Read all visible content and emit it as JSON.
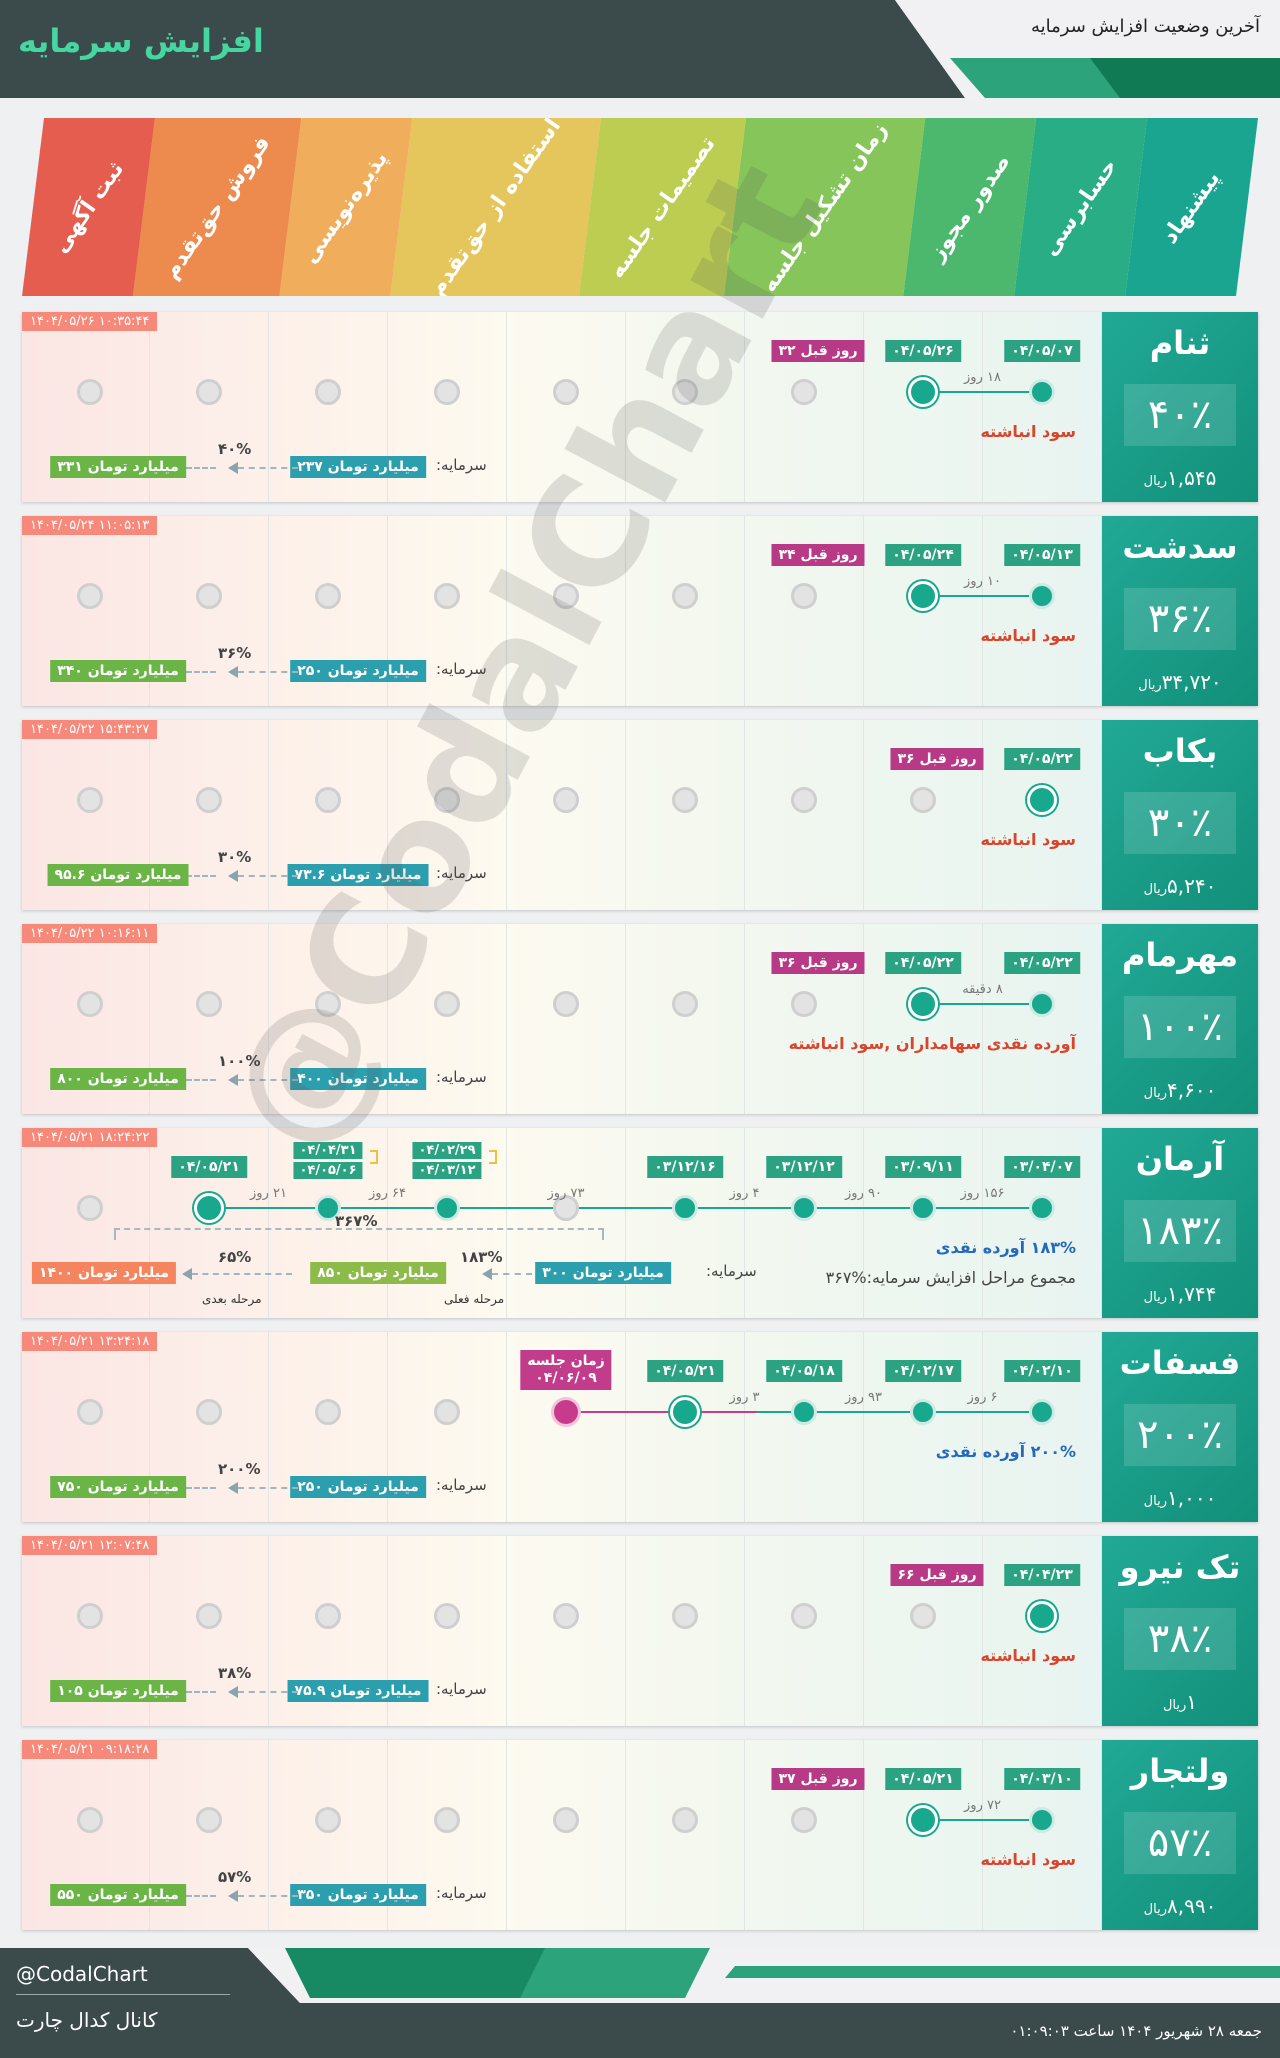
{
  "header": {
    "title": "افزایش سرمایه",
    "subtitle": "آخرین وضعیت افزایش سرمایه"
  },
  "stages": [
    {
      "label": "پیشنهاد",
      "color": "#1aa590"
    },
    {
      "label": "حسابرسی",
      "color": "#28ad84"
    },
    {
      "label": "صدور مجوز",
      "color": "#4bb86d"
    },
    {
      "label": "زمان تشکیل جلسه",
      "color": "#85c55a"
    },
    {
      "label": "تصمیمات جلسه",
      "color": "#bccd52"
    },
    {
      "label": "استفاده از حق‌تقدم",
      "color": "#e5c65c"
    },
    {
      "label": "پذیره‌نویسی",
      "color": "#f0ad5b"
    },
    {
      "label": "فروش حق‌تقدم",
      "color": "#ed8a4e"
    },
    {
      "label": "ثبت آگهی",
      "color": "#e45d4f"
    }
  ],
  "cards": [
    {
      "symbol": "ثنام",
      "percent": "۴۰٪",
      "price": "۱,۵۴۵",
      "unit": "ریال",
      "timestamp": "۱۴۰۴/۰۵/۲۶ ۱۰:۳۵:۴۴",
      "reason": "سود انباشته",
      "reason_color": "red",
      "cap_label": "سرمایه:",
      "capital": "۲۳۷ میلیارد تومان",
      "increase_pct": "۴۰%",
      "new_capital": "۳۳۱ میلیارد تومان",
      "nodes": [
        {
          "idx": 0,
          "state": "done",
          "date": "۰۴/۰۵/۰۷"
        },
        {
          "idx": 1,
          "state": "cur",
          "date": "۰۴/۰۵/۲۶"
        }
      ],
      "durations": [
        {
          "from": 0,
          "to": 1,
          "text": "۱۸ روز"
        }
      ],
      "days_ago": {
        "idx": 2,
        "text": "۳۲ روز قبل"
      }
    },
    {
      "symbol": "سدشت",
      "percent": "۳۶٪",
      "price": "۳۴,۷۲۰",
      "unit": "ریال",
      "timestamp": "۱۴۰۴/۰۵/۲۴ ۱۱:۰۵:۱۳",
      "reason": "سود انباشته",
      "reason_color": "red",
      "cap_label": "سرمایه:",
      "capital": "۲۵۰ میلیارد تومان",
      "increase_pct": "۳۶%",
      "new_capital": "۳۴۰ میلیارد تومان",
      "nodes": [
        {
          "idx": 0,
          "state": "done",
          "date": "۰۴/۰۵/۱۳"
        },
        {
          "idx": 1,
          "state": "cur",
          "date": "۰۴/۰۵/۲۴"
        }
      ],
      "durations": [
        {
          "from": 0,
          "to": 1,
          "text": "۱۰ روز"
        }
      ],
      "days_ago": {
        "idx": 2,
        "text": "۳۴ روز قبل"
      }
    },
    {
      "symbol": "بکاب",
      "percent": "۳۰٪",
      "price": "۵,۲۴۰",
      "unit": "ریال",
      "timestamp": "۱۴۰۴/۰۵/۲۲ ۱۵:۴۳:۲۷",
      "reason": "سود انباشته",
      "reason_color": "red",
      "cap_label": "سرمایه:",
      "capital": "۷۳.۶ میلیارد تومان",
      "increase_pct": "۳۰%",
      "new_capital": "۹۵.۶ میلیارد تومان",
      "nodes": [
        {
          "idx": 0,
          "state": "cur",
          "date": "۰۴/۰۵/۲۲"
        }
      ],
      "durations": [],
      "days_ago": {
        "idx": 1,
        "text": "۳۶ روز قبل"
      }
    },
    {
      "symbol": "مهرمام",
      "percent": "۱۰۰٪",
      "price": "۴,۶۰۰",
      "unit": "ریال",
      "timestamp": "۱۴۰۴/۰۵/۲۲ ۱۰:۱۶:۱۱",
      "reason": "آورده نقدی سهامداران ,سود انباشته",
      "reason_color": "red",
      "cap_label": "سرمایه:",
      "capital": "۴۰۰ میلیارد تومان",
      "increase_pct": "۱۰۰%",
      "new_capital": "۸۰۰ میلیارد تومان",
      "nodes": [
        {
          "idx": 0,
          "state": "done",
          "date": "۰۴/۰۵/۲۲"
        },
        {
          "idx": 1,
          "state": "cur",
          "date": "۰۴/۰۵/۲۲"
        }
      ],
      "durations": [
        {
          "from": 0,
          "to": 1,
          "text": "۸ دقیقه"
        }
      ],
      "days_ago": {
        "idx": 2,
        "text": "۳۶ روز قبل"
      }
    },
    {
      "symbol": "آرمان",
      "percent": "۱۸۳٪",
      "price": "۱,۷۴۴",
      "unit": "ریال",
      "timestamp": "۱۴۰۴/۰۵/۲۱ ۱۸:۲۴:۲۲",
      "reason": "۱۸۳% آورده نقدی",
      "reason_color": "blue",
      "reason2": "مجموع مراحل افزایش سرمایه:%۳۶۷",
      "cap_label": "سرمایه:",
      "capital": "۳۰۰ میلیارد تومان",
      "increase_pct": "۶۵%",
      "new_capital": "۱۴۰۰ میلیارد تومان",
      "mid_capital": "۸۵۰ میلیارد تومان",
      "mid_pct": "۱۸۳%",
      "total_pct": "۳۶۷%",
      "current_stage_label": "مرحله فعلی",
      "next_stage_label": "مرحله بعدی",
      "nodes": [
        {
          "idx": 0,
          "state": "done",
          "date": "۰۳/۰۴/۰۷"
        },
        {
          "idx": 1,
          "state": "done",
          "date": "۰۳/۰۹/۱۱"
        },
        {
          "idx": 2,
          "state": "done",
          "date": "۰۳/۱۲/۱۲"
        },
        {
          "idx": 3,
          "state": "done",
          "date": "۰۳/۱۲/۱۶"
        },
        {
          "idx": 5,
          "state": "done",
          "date": "۰۴/۰۲/۲۹",
          "date2": "۰۴/۰۳/۱۲"
        },
        {
          "idx": 6,
          "state": "done",
          "date": "۰۴/۰۴/۳۱",
          "date2": "۰۴/۰۵/۰۶"
        },
        {
          "idx": 7,
          "state": "cur",
          "date": "۰۴/۰۵/۲۱"
        }
      ],
      "durations": [
        {
          "from": 0,
          "to": 1,
          "text": "۱۵۶ روز"
        },
        {
          "from": 1,
          "to": 2,
          "text": "۹۰ روز"
        },
        {
          "from": 2,
          "to": 3,
          "text": "۴ روز"
        },
        {
          "from": 3,
          "to": 5,
          "text": "۷۳ روز"
        },
        {
          "from": 5,
          "to": 6,
          "text": "۶۴ روز"
        },
        {
          "from": 6,
          "to": 7,
          "text": "۲۱ روز"
        }
      ]
    },
    {
      "symbol": "فسفات",
      "percent": "۲۰۰٪",
      "price": "۱,۰۰۰",
      "unit": "ریال",
      "timestamp": "۱۴۰۴/۰۵/۲۱ ۱۳:۲۴:۱۸",
      "reason": "۲۰۰% آورده نقدی",
      "reason_color": "blue",
      "cap_label": "سرمایه:",
      "capital": "۲۵۰ میلیارد تومان",
      "increase_pct": "۲۰۰%",
      "new_capital": "۷۵۰ میلیارد تومان",
      "nodes": [
        {
          "idx": 0,
          "state": "done",
          "date": "۰۴/۰۲/۱۰"
        },
        {
          "idx": 1,
          "state": "done",
          "date": "۰۴/۰۲/۱۷"
        },
        {
          "idx": 2,
          "state": "done",
          "date": "۰۴/۰۵/۱۸"
        },
        {
          "idx": 3,
          "state": "cur",
          "date": "۰۴/۰۵/۲۱"
        },
        {
          "idx": 4,
          "state": "meet",
          "meeting_label": "زمان جلسه",
          "meeting_date": "۰۴/۰۶/۰۹"
        }
      ],
      "durations": [
        {
          "from": 0,
          "to": 1,
          "text": "۶ روز"
        },
        {
          "from": 1,
          "to": 2,
          "text": "۹۳ روز"
        },
        {
          "from": 2,
          "to": 3,
          "text": "۳ روز"
        }
      ]
    },
    {
      "symbol": "تک نیرو",
      "percent": "۳۸٪",
      "price": "۱",
      "unit": "ریال",
      "timestamp": "۱۴۰۴/۰۵/۲۱ ۱۲:۰۷:۴۸",
      "reason": "سود انباشته",
      "reason_color": "red",
      "cap_label": "سرمایه:",
      "capital": "۷۵.۹ میلیارد تومان",
      "increase_pct": "۳۸%",
      "new_capital": "۱۰۵ میلیارد تومان",
      "nodes": [
        {
          "idx": 0,
          "state": "cur",
          "date": "۰۴/۰۴/۲۳"
        }
      ],
      "durations": [],
      "days_ago": {
        "idx": 1,
        "text": "۶۶ روز قبل"
      }
    },
    {
      "symbol": "ولتجار",
      "percent": "۵۷٪",
      "price": "۸,۹۹۰",
      "unit": "ریال",
      "timestamp": "۱۴۰۴/۰۵/۲۱ ۰۹:۱۸:۲۸",
      "reason": "سود انباشته",
      "reason_color": "red",
      "cap_label": "سرمایه:",
      "capital": "۳۵۰ میلیارد تومان",
      "increase_pct": "۵۷%",
      "new_capital": "۵۵۰ میلیارد تومان",
      "nodes": [
        {
          "idx": 0,
          "state": "done",
          "date": "۰۴/۰۳/۱۰"
        },
        {
          "idx": 1,
          "state": "cur",
          "date": "۰۴/۰۵/۲۱"
        }
      ],
      "durations": [
        {
          "from": 0,
          "to": 1,
          "text": "۷۲ روز"
        }
      ],
      "days_ago": {
        "idx": 2,
        "text": "۳۷ روز قبل"
      }
    }
  ],
  "watermark": "@CodalChart",
  "footer": {
    "handle": "@CodalChart",
    "channel": "کانال کدال چارت",
    "date": "جمعه ۲۸ شهریور ۱۴۰۴ ساعت ۰۱:۰۹:۰۳"
  }
}
